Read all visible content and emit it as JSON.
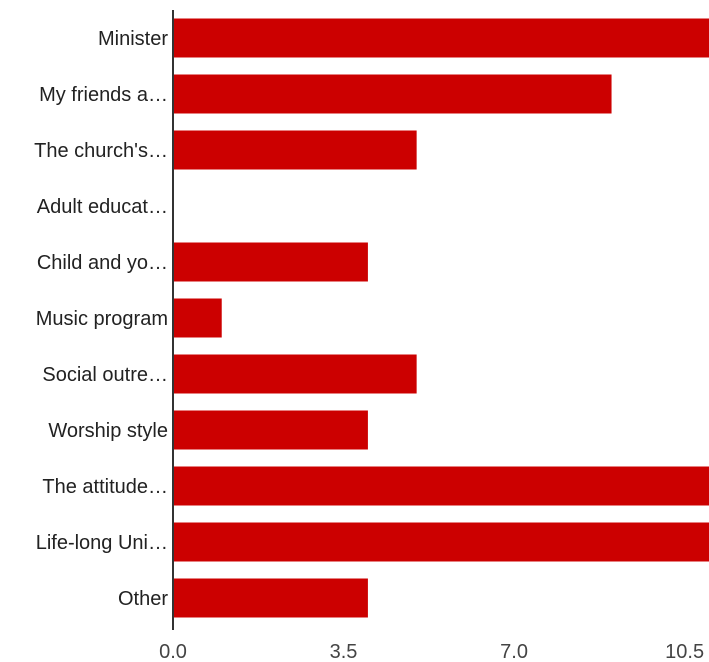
{
  "chart_data": {
    "type": "bar",
    "orientation": "horizontal",
    "categories": [
      "Minister",
      "My friends a…",
      "The church's…",
      "Adult educat…",
      "Child and yo…",
      "Music program",
      "Social outre…",
      "Worship style",
      "The attitude…",
      "Life-long Uni…",
      "Other"
    ],
    "values": [
      11,
      9,
      5,
      0,
      4,
      1,
      5,
      4,
      11,
      11,
      4
    ],
    "xlim": [
      0,
      11
    ],
    "xticks": [
      "0.0",
      "3.5",
      "7.0",
      "10.5"
    ],
    "xtick_values": [
      0,
      3.5,
      7,
      10.5
    ],
    "bar_color": "#cc0000",
    "axis_color": "#333333",
    "grid": false,
    "legend": "none"
  }
}
